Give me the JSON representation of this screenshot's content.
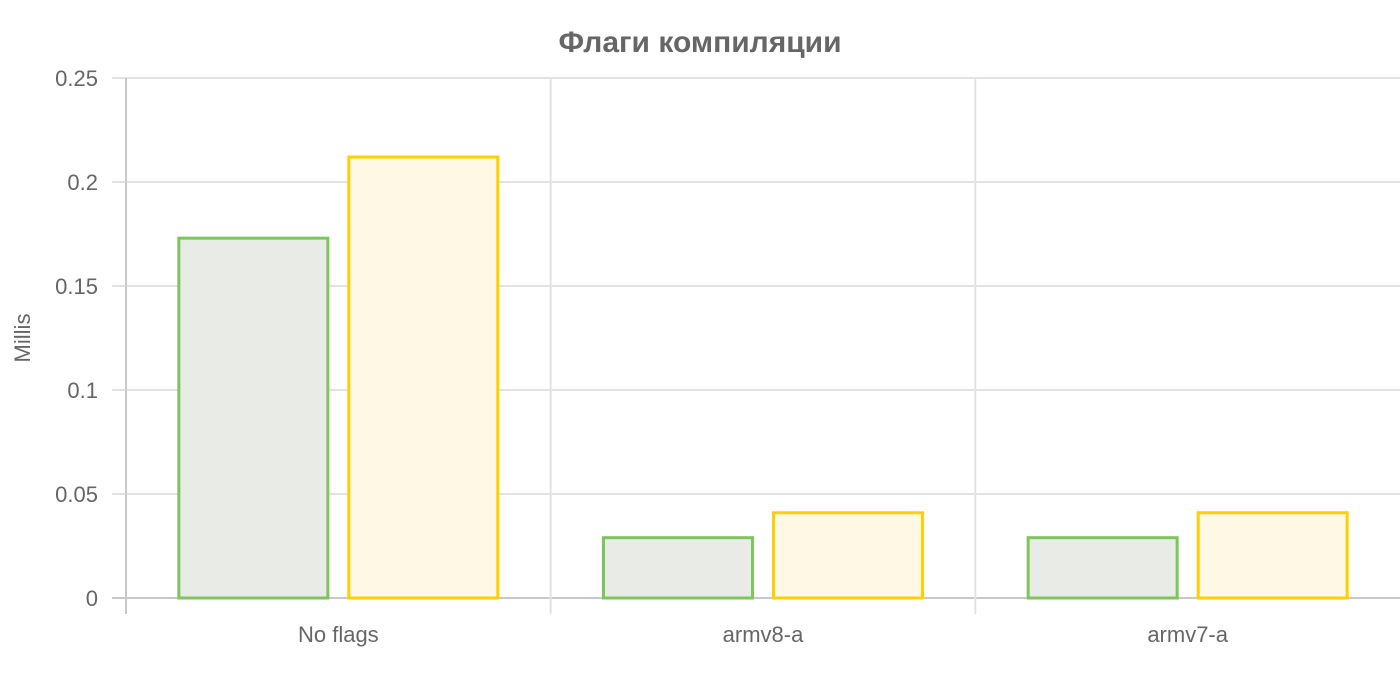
{
  "chart_data": {
    "type": "bar",
    "title": "Флаги компиляции",
    "xlabel": "",
    "ylabel": "Millis",
    "categories": [
      "No flags",
      "armv8-a",
      "armv7-a"
    ],
    "series": [
      {
        "values": [
          0.173,
          0.029,
          0.029
        ],
        "stroke": "#7dc55c",
        "fill": "#e9ebe7"
      },
      {
        "values": [
          0.212,
          0.041,
          0.041
        ],
        "stroke": "#ffd000",
        "fill": "#fef8e5"
      }
    ],
    "ylim": [
      0,
      0.25
    ],
    "yticks": [
      "0",
      "0.05",
      "0.1",
      "0.15",
      "0.2",
      "0.25"
    ],
    "grid": true,
    "legend": "none"
  }
}
